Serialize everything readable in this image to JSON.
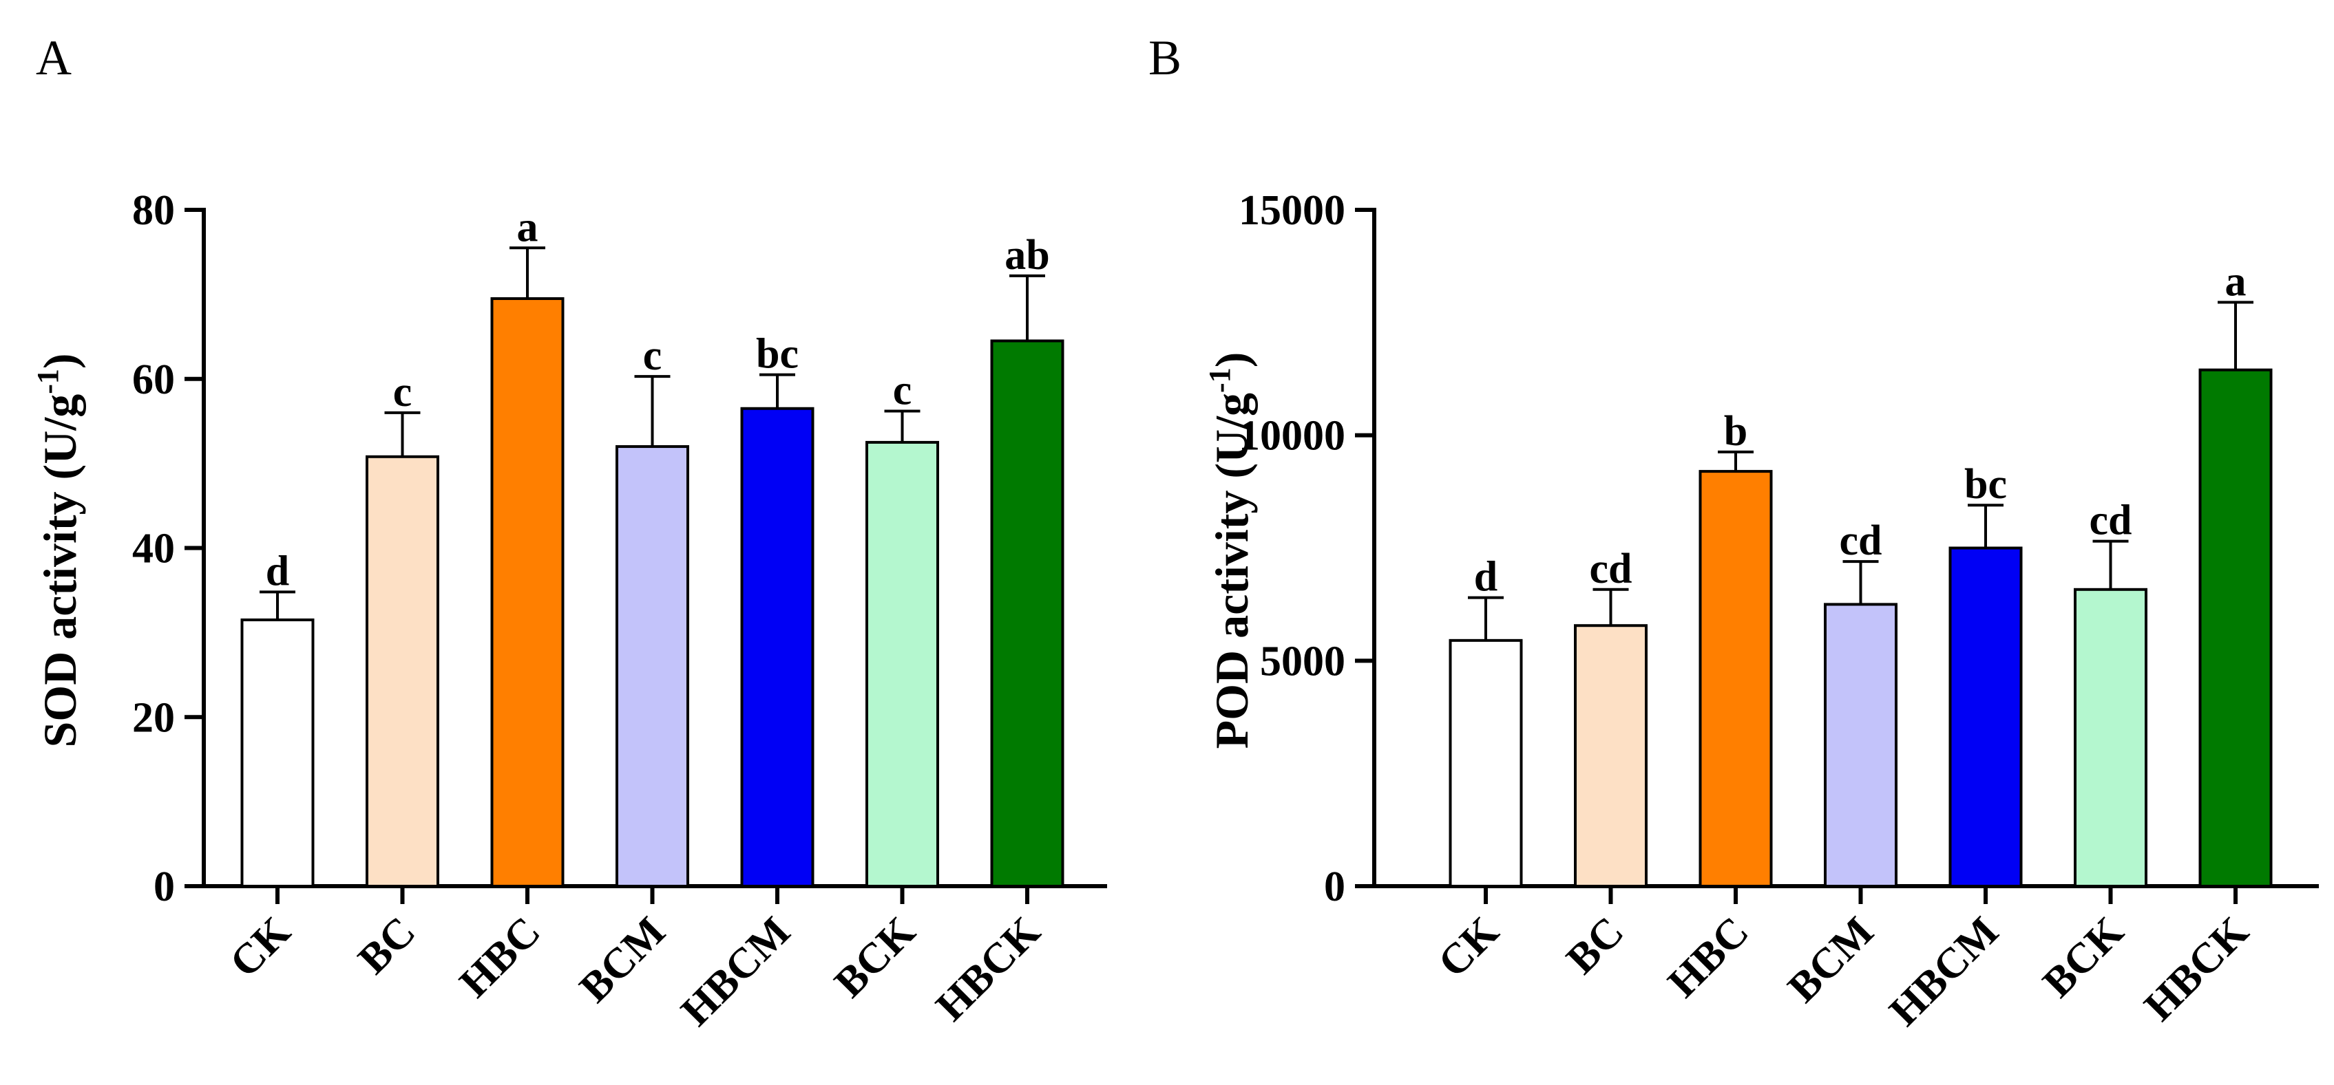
{
  "figure": {
    "panels": [
      "A",
      "B"
    ]
  },
  "chart_data": [
    {
      "panel": "A",
      "type": "bar",
      "title": "",
      "ylabel": "SOD activity (U/g",
      "ylabel_sup": "-1",
      "ylabel_end": ")",
      "xlabel": "",
      "ylim": [
        0,
        80
      ],
      "yticks": [
        0,
        20,
        40,
        60,
        80
      ],
      "grid": false,
      "categories": [
        "CK",
        "BC",
        "HBC",
        "BCM",
        "HBCM",
        "BCK",
        "HBCK"
      ],
      "values": [
        31.5,
        50.8,
        69.5,
        52.0,
        56.5,
        52.5,
        64.5
      ],
      "errors": [
        3.3,
        5.2,
        6.0,
        8.3,
        4.0,
        3.7,
        7.7
      ],
      "letters": [
        "d",
        "c",
        "a",
        "c",
        "bc",
        "c",
        "ab"
      ],
      "colors": [
        "#ffffff",
        "#fde0c5",
        "#ff7f00",
        "#c3c3fa",
        "#0000f5",
        "#b4f7cf",
        "#007a00"
      ]
    },
    {
      "panel": "B",
      "type": "bar",
      "title": "",
      "ylabel": "POD activity (U/g",
      "ylabel_sup": "-1",
      "ylabel_end": ")",
      "xlabel": "",
      "ylim": [
        0,
        15000
      ],
      "yticks": [
        0,
        5000,
        10000,
        15000
      ],
      "grid": false,
      "categories": [
        "CK",
        "BC",
        "HBC",
        "BCM",
        "HBCM",
        "BCK",
        "HBCK"
      ],
      "values": [
        5450,
        5780,
        9200,
        6250,
        7500,
        6580,
        11450
      ],
      "errors": [
        950,
        800,
        430,
        950,
        950,
        1070,
        1500
      ],
      "letters": [
        "d",
        "cd",
        "b",
        "cd",
        "bc",
        "cd",
        "a"
      ],
      "colors": [
        "#ffffff",
        "#fde0c5",
        "#ff7f00",
        "#c3c3fa",
        "#0000f5",
        "#b4f7cf",
        "#007a00"
      ]
    }
  ]
}
